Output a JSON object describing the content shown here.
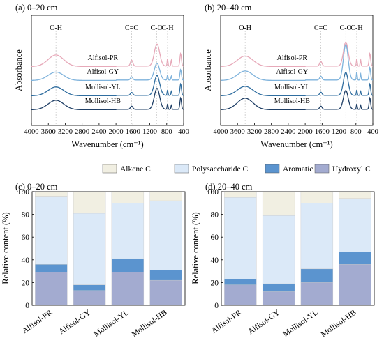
{
  "colors": {
    "alfisol_pr": "#e7a9b9",
    "alfisol_gy": "#7fb3dc",
    "mollisol_yl": "#2f6d9f",
    "mollisol_hb": "#1f3f66",
    "alkene_c": "#f1efe2",
    "polysaccharide_c": "#dbe9f8",
    "aromatic_c": "#5b94cf",
    "hydroxyl_c": "#a3abd0",
    "guide": "#b5b5b5"
  },
  "legend": {
    "items": [
      "Alkene C",
      "Polysaccharide C",
      "Aromatic C",
      "Hydroxyl C"
    ]
  },
  "chart_data": [
    {
      "type": "line",
      "panel": "(a) 0–20 cm",
      "xlabel": "Wavenumber (cm⁻¹)",
      "ylabel": "Absorbance",
      "xlim": [
        4000,
        400
      ],
      "x_reversed": true,
      "xticks": [
        4000,
        3600,
        3200,
        2800,
        2400,
        2000,
        1600,
        1200,
        800,
        400
      ],
      "band_labels": [
        {
          "text": "O-H",
          "x": 3420
        },
        {
          "text": "C=C",
          "x": 1630
        },
        {
          "text": "C-O",
          "x": 1040
        },
        {
          "text": "C-H",
          "x": 780
        }
      ],
      "series": [
        {
          "name": "Alfisol-PR",
          "color_key": "alfisol_pr",
          "offset": 3.0,
          "peaks": [
            [
              3420,
              0.55,
              260
            ],
            [
              1630,
              0.28,
              40
            ],
            [
              1030,
              1.05,
              90
            ],
            [
              780,
              0.35,
              15
            ],
            [
              690,
              0.3,
              15
            ],
            [
              470,
              0.6,
              25
            ]
          ]
        },
        {
          "name": "Alfisol-GY",
          "color_key": "alfisol_gy",
          "offset": 2.0,
          "peaks": [
            [
              3420,
              0.4,
              260
            ],
            [
              1630,
              0.15,
              40
            ],
            [
              1030,
              0.8,
              90
            ],
            [
              780,
              0.25,
              15
            ],
            [
              690,
              0.2,
              15
            ],
            [
              470,
              0.5,
              25
            ]
          ]
        },
        {
          "name": "Mollisol-YL",
          "color_key": "mollisol_yl",
          "offset": 1.0,
          "peaks": [
            [
              3420,
              0.42,
              260
            ],
            [
              1630,
              0.14,
              40
            ],
            [
              1030,
              0.95,
              90
            ],
            [
              780,
              0.25,
              15
            ],
            [
              690,
              0.2,
              15
            ],
            [
              470,
              0.55,
              25
            ]
          ]
        },
        {
          "name": "Mollisol-HB",
          "color_key": "mollisol_hb",
          "offset": 0.0,
          "peaks": [
            [
              3420,
              0.45,
              260
            ],
            [
              1630,
              0.15,
              40
            ],
            [
              1030,
              1.0,
              90
            ],
            [
              780,
              0.25,
              15
            ],
            [
              690,
              0.2,
              15
            ],
            [
              470,
              0.55,
              25
            ]
          ]
        }
      ]
    },
    {
      "type": "line",
      "panel": "(b) 20–40 cm",
      "xlabel": "Wavenumber (cm⁻¹)",
      "ylabel": "Absorbance",
      "xlim": [
        4000,
        400
      ],
      "x_reversed": true,
      "xticks": [
        4000,
        3600,
        3200,
        2800,
        2400,
        2000,
        1600,
        1200,
        800,
        400
      ],
      "band_labels": [
        {
          "text": "O-H",
          "x": 3420
        },
        {
          "text": "C=C",
          "x": 1630
        },
        {
          "text": "C-O",
          "x": 1040
        },
        {
          "text": "C-H",
          "x": 780
        }
      ],
      "series": [
        {
          "name": "Alfisol-PR",
          "color_key": "alfisol_pr",
          "offset": 3.0,
          "peaks": [
            [
              3420,
              0.5,
              260
            ],
            [
              1630,
              0.22,
              40
            ],
            [
              1040,
              1.15,
              80
            ],
            [
              780,
              0.35,
              15
            ],
            [
              690,
              0.3,
              15
            ],
            [
              470,
              0.6,
              25
            ]
          ]
        },
        {
          "name": "Alfisol-GY",
          "color_key": "alfisol_gy",
          "offset": 2.0,
          "peaks": [
            [
              3420,
              0.45,
              260
            ],
            [
              1630,
              0.18,
              40
            ],
            [
              1040,
              1.7,
              80
            ],
            [
              780,
              0.4,
              15
            ],
            [
              690,
              0.3,
              15
            ],
            [
              470,
              0.6,
              25
            ]
          ]
        },
        {
          "name": "Mollisol-YL",
          "color_key": "mollisol_yl",
          "offset": 1.0,
          "peaks": [
            [
              3420,
              0.45,
              260
            ],
            [
              1630,
              0.15,
              40
            ],
            [
              1040,
              1.1,
              80
            ],
            [
              780,
              0.25,
              15
            ],
            [
              690,
              0.2,
              15
            ],
            [
              470,
              0.55,
              25
            ]
          ]
        },
        {
          "name": "Mollisol-HB",
          "color_key": "mollisol_hb",
          "offset": 0.0,
          "peaks": [
            [
              3420,
              0.55,
              260
            ],
            [
              1630,
              0.15,
              40
            ],
            [
              1040,
              0.9,
              80
            ],
            [
              780,
              0.25,
              15
            ],
            [
              690,
              0.2,
              15
            ],
            [
              470,
              0.55,
              25
            ]
          ]
        }
      ]
    },
    {
      "type": "bar",
      "stacked": true,
      "panel": "(c) 0–20 cm",
      "ylabel": "Relative content (%)",
      "ylim": [
        0,
        100
      ],
      "yticks": [
        0,
        20,
        40,
        60,
        80,
        100
      ],
      "categories": [
        "Alfisol-PR",
        "Alfisol-GY",
        "Mollisol-YL",
        "Mollisol-HB"
      ],
      "series": [
        {
          "name": "Hydroxyl C",
          "color_key": "hydroxyl_c",
          "values": [
            29,
            13,
            29,
            22
          ]
        },
        {
          "name": "Aromatic C",
          "color_key": "aromatic_c",
          "values": [
            7,
            5,
            12,
            9
          ]
        },
        {
          "name": "Polysaccharide C",
          "color_key": "polysaccharide_c",
          "values": [
            60,
            63,
            49,
            61
          ]
        },
        {
          "name": "Alkene C",
          "color_key": "alkene_c",
          "values": [
            4,
            19,
            10,
            8
          ]
        }
      ]
    },
    {
      "type": "bar",
      "stacked": true,
      "panel": "(d) 20–40 cm",
      "ylabel": "Relative content (%)",
      "ylim": [
        0,
        100
      ],
      "yticks": [
        0,
        20,
        40,
        60,
        80,
        100
      ],
      "categories": [
        "Alfisol-PR",
        "Alfisol-GY",
        "Mollisol-YL",
        "Mollisol-HB"
      ],
      "series": [
        {
          "name": "Hydroxyl C",
          "color_key": "hydroxyl_c",
          "values": [
            18,
            12,
            20,
            36
          ]
        },
        {
          "name": "Aromatic C",
          "color_key": "aromatic_c",
          "values": [
            5,
            7,
            12,
            11
          ]
        },
        {
          "name": "Polysaccharide C",
          "color_key": "polysaccharide_c",
          "values": [
            72,
            60,
            58,
            47
          ]
        },
        {
          "name": "Alkene C",
          "color_key": "alkene_c",
          "values": [
            5,
            21,
            10,
            6
          ]
        }
      ]
    }
  ]
}
